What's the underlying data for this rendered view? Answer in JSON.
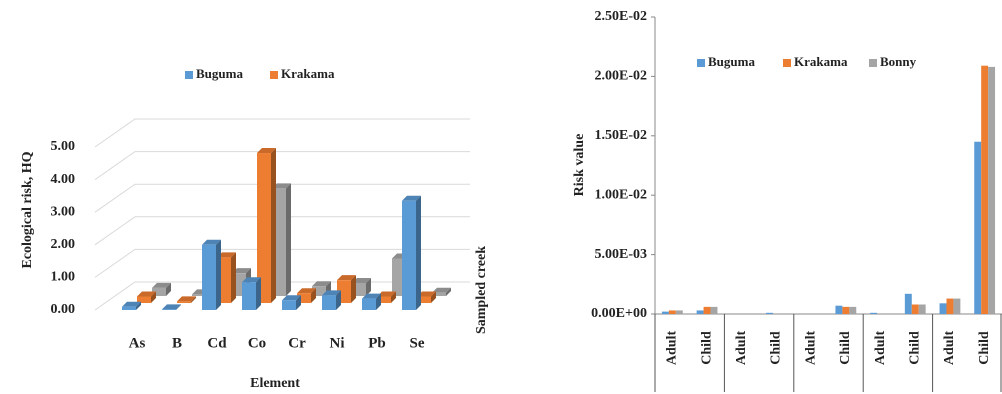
{
  "chart_data": [
    {
      "type": "bar3d",
      "categories": [
        "As",
        "B",
        "Cd",
        "Co",
        "Cr",
        "Ni",
        "Pb",
        "Se"
      ],
      "series": [
        {
          "name": "Buguma",
          "color": "#5b9bd5",
          "values": [
            0.1,
            0.02,
            2.0,
            0.85,
            0.3,
            0.45,
            0.35,
            3.35
          ]
        },
        {
          "name": "Krakama",
          "color": "#ed7d31",
          "values": [
            0.2,
            0.05,
            1.4,
            4.6,
            0.3,
            0.7,
            0.2,
            0.2
          ]
        },
        {
          "color": "#a5a5a5",
          "values": [
            0.25,
            0.05,
            0.7,
            3.3,
            0.3,
            0.4,
            1.15,
            0.1
          ]
        }
      ],
      "ylabel": "Ecological risk, HQ",
      "xlabel": "Element",
      "zlabel": "Sampled creek",
      "ylim": [
        0,
        5
      ],
      "yticks": [
        {
          "value": 0,
          "label": "0.00"
        },
        {
          "value": 1,
          "label": "1.00"
        },
        {
          "value": 2,
          "label": "2.00"
        },
        {
          "value": 3,
          "label": "3.00"
        },
        {
          "value": 4,
          "label": "4.00"
        },
        {
          "value": 5,
          "label": "5.00"
        }
      ],
      "grid": true
    },
    {
      "type": "bar",
      "categories": [
        "Adult",
        "Child",
        "Adult",
        "Child",
        "Adult",
        "Child",
        "Adult",
        "Child",
        "Adult",
        "Child"
      ],
      "series": [
        {
          "name": "Buguma",
          "color": "#5b9bd5",
          "values": [
            0.0002,
            0.0003,
            0,
            0.0001,
            0,
            0.0007,
            0.0001,
            0.0017,
            0.0009,
            0.0145
          ]
        },
        {
          "name": "Krakama",
          "color": "#ed7d31",
          "values": [
            0.0003,
            0.0006,
            0,
            0,
            0,
            0.0006,
            0,
            0.0008,
            0.0013,
            0.0209
          ]
        },
        {
          "name": "Bonny",
          "color": "#a5a5a5",
          "values": [
            0.0003,
            0.0006,
            0,
            0,
            0,
            0.0006,
            0,
            0.0008,
            0.0013,
            0.0208
          ]
        }
      ],
      "ylabel": "Risk value",
      "ylim": [
        0,
        0.025
      ],
      "yticks": [
        {
          "value": 0,
          "label": "0.00E+00"
        },
        {
          "value": 0.005,
          "label": "5.00E-03"
        },
        {
          "value": 0.01,
          "label": "1.00E-02"
        },
        {
          "value": 0.015,
          "label": "1.50E-02"
        },
        {
          "value": 0.02,
          "label": "2.00E-02"
        },
        {
          "value": 0.025,
          "label": "2.50E-02"
        }
      ]
    }
  ]
}
